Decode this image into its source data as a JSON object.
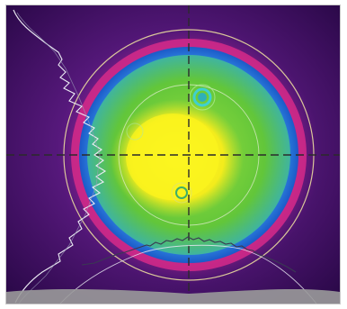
{
  "image": {
    "kind": "laser beam profile heatmap",
    "colors": {
      "background": "#3a0d5e",
      "outer_ring": "#d8287c",
      "inner_ring": "#2a8fe0",
      "body": "#6fcf3a",
      "core": "#f7f21c",
      "crosshair": "#2b2b2b",
      "profile_trace": "#e8e8f0",
      "reference_circle": "#f2e6a0"
    },
    "crosshair": {
      "style": "dashed"
    },
    "profiles": [
      "horizontal",
      "vertical"
    ]
  }
}
